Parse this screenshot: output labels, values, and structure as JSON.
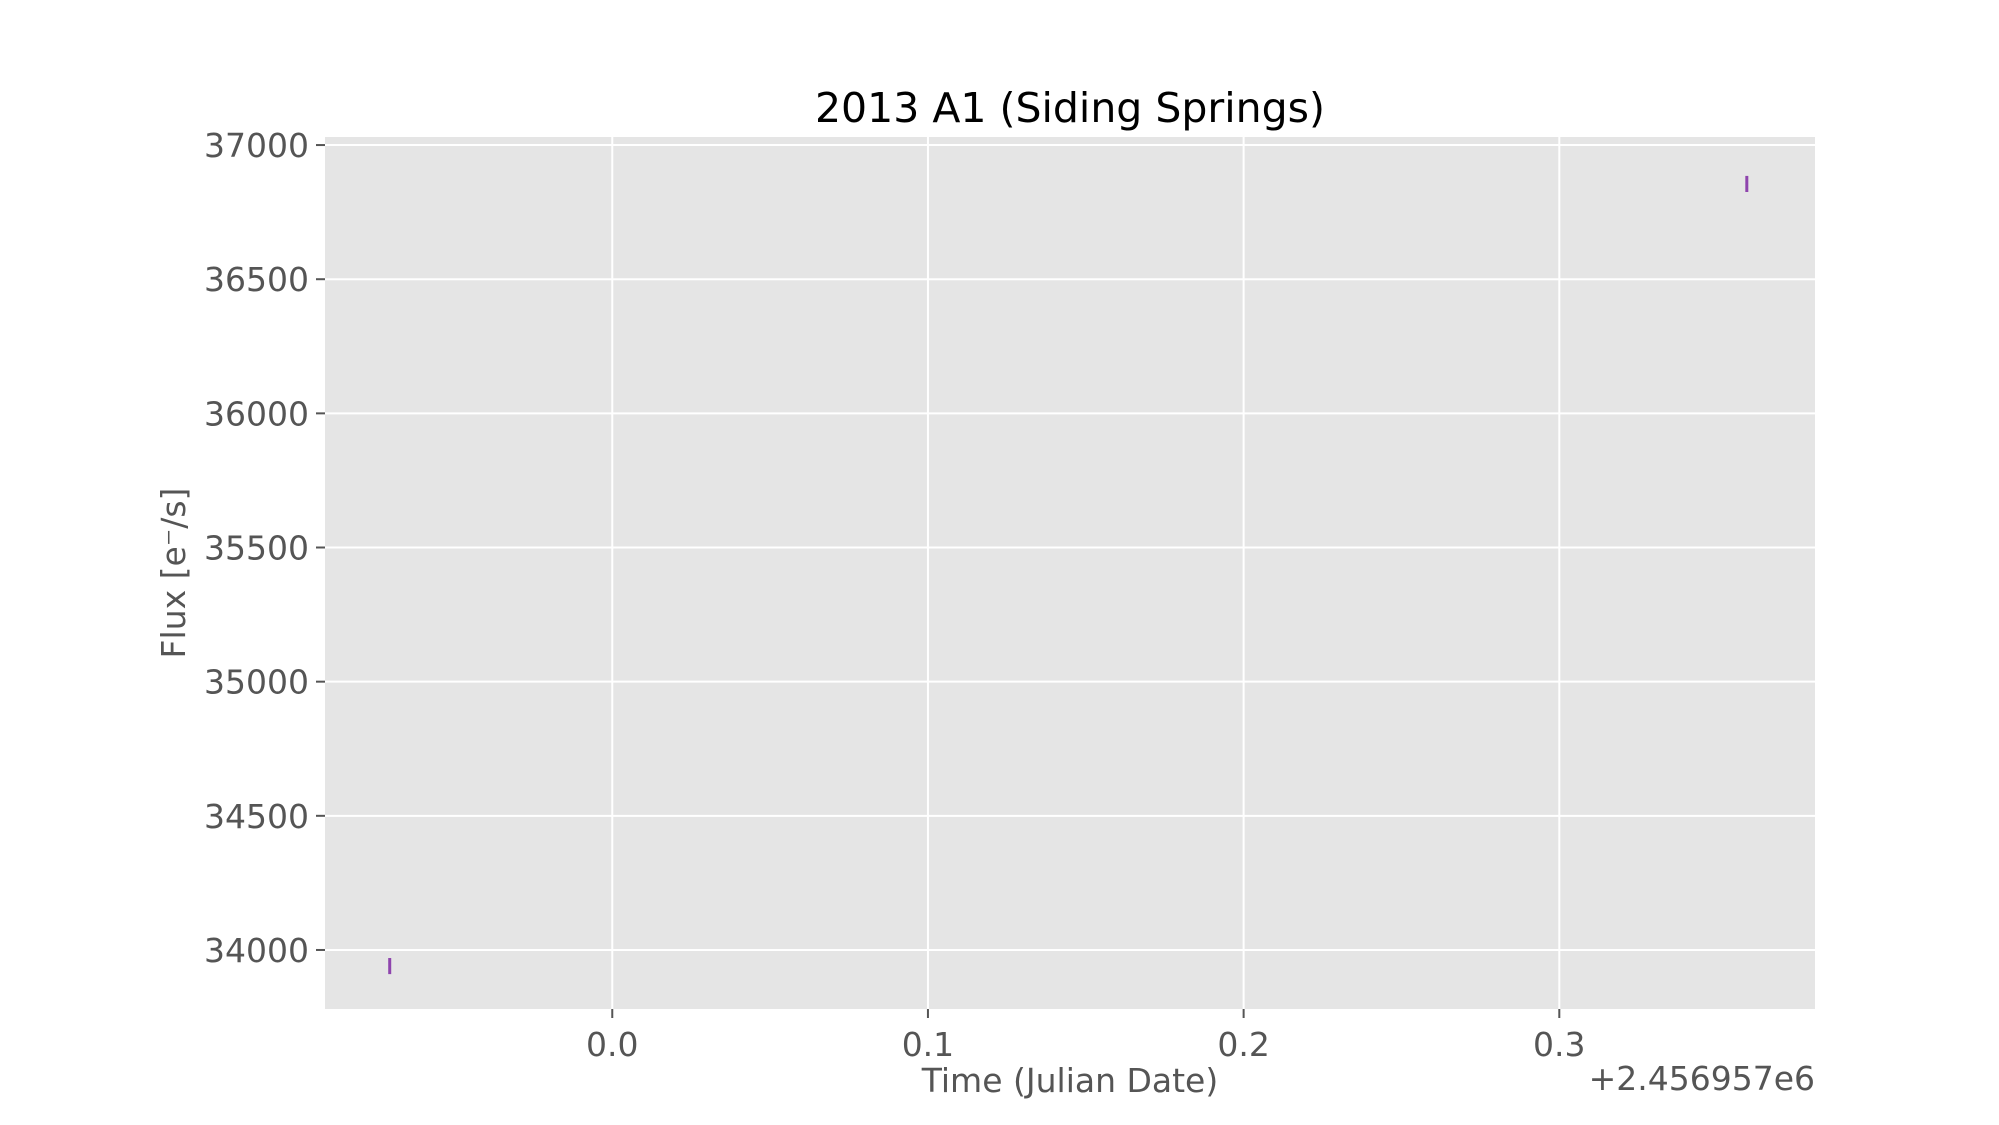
{
  "chart_data": {
    "type": "scatter",
    "title": "2013 A1 (Siding Springs)",
    "xlabel": "Time (Julian Date)",
    "ylabel": "Flux [e⁻/s]",
    "x_offset_label": "+2.456957e6",
    "xlim": [
      -0.091,
      0.381
    ],
    "ylim": [
      33780,
      37030
    ],
    "xticks": [
      0.0,
      0.1,
      0.2,
      0.3
    ],
    "xtick_labels": [
      "0.0",
      "0.1",
      "0.2",
      "0.3"
    ],
    "yticks": [
      34000,
      34500,
      35000,
      35500,
      36000,
      36500,
      37000
    ],
    "ytick_labels": [
      "34000",
      "34500",
      "35000",
      "35500",
      "36000",
      "36500",
      "37000"
    ],
    "grid": true,
    "series": [
      {
        "color": "#8e44ad",
        "marker": "errorbar",
        "points": [
          {
            "x": -0.0705,
            "y": 33940,
            "yerr": 30
          },
          {
            "x": 0.3594,
            "y": 36855,
            "yerr": 30
          }
        ]
      }
    ],
    "colors": {
      "axes_background": "#e5e5e5",
      "grid": "#ffffff",
      "tick_text": "#555555",
      "title_text": "#000000"
    }
  }
}
